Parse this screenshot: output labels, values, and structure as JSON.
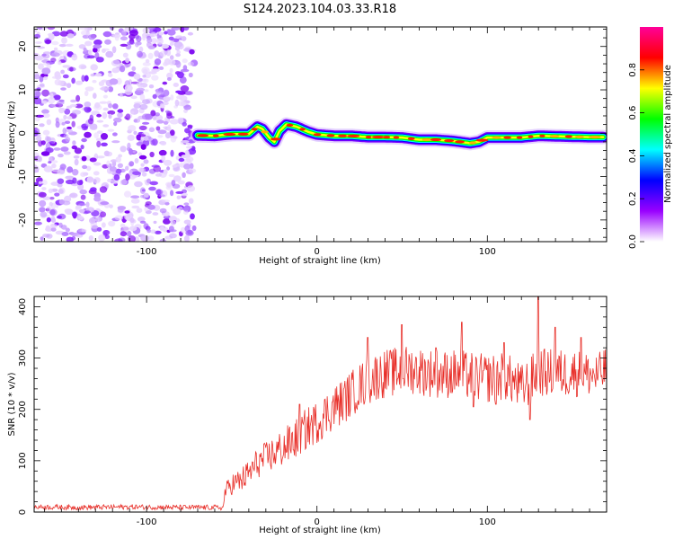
{
  "title": "S124.2023.104.03.33.R18",
  "chart_data": [
    {
      "type": "heatmap",
      "xlabel": "Height of straight line (km)",
      "ylabel": "Frequency (Hz)",
      "xlim": [
        -166,
        170
      ],
      "ylim": [
        -25,
        24.5
      ],
      "x_ticks": [
        -100,
        0,
        100
      ],
      "y_ticks": [
        -20,
        -10,
        0,
        10,
        20
      ],
      "colorbar": {
        "label": "Normalized spectral amplitude",
        "range": [
          0,
          1
        ],
        "ticks": [
          0.0,
          0.2,
          0.4,
          0.6,
          0.8
        ],
        "colors": [
          "#ffffff",
          "#9900ff",
          "#0000ff",
          "#00ffff",
          "#00ff00",
          "#ffff00",
          "#ff0000",
          "#ff0099"
        ]
      },
      "noise_region_end_x": -72,
      "ridge": {
        "x": [
          -70,
          -60,
          -50,
          -40,
          -35,
          -32,
          -28,
          -25,
          -22,
          -18,
          -12,
          -5,
          0,
          10,
          20,
          30,
          40,
          50,
          60,
          70,
          80,
          90,
          95,
          100,
          110,
          120,
          130,
          140,
          150,
          160,
          168
        ],
        "freq": [
          -0.5,
          -0.6,
          -0.2,
          -0.2,
          1.5,
          1.0,
          -1.0,
          -2.0,
          0.5,
          2.0,
          1.5,
          0.3,
          -0.3,
          -0.6,
          -0.6,
          -0.9,
          -0.9,
          -1.0,
          -1.5,
          -1.5,
          -1.8,
          -2.3,
          -2.0,
          -1.0,
          -1.0,
          -1.0,
          -0.6,
          -0.7,
          -0.8,
          -0.9,
          -0.9
        ]
      }
    },
    {
      "type": "line",
      "xlabel": "Height of straight line (km)",
      "ylabel": "SNR (10 * v/v)",
      "xlim": [
        -166,
        170
      ],
      "ylim": [
        0,
        420
      ],
      "x_ticks": [
        -100,
        0,
        100
      ],
      "y_ticks": [
        0,
        100,
        200,
        300,
        400
      ],
      "color": "#e8302a",
      "series": [
        {
          "x": [
            -166,
            -140,
            -110,
            -80,
            -60,
            -55,
            -54,
            -50,
            -45,
            -40,
            -35,
            -30,
            -25,
            -20,
            -15,
            -10,
            -5,
            0,
            5,
            10,
            15,
            20,
            25,
            30,
            35,
            40,
            45,
            50,
            55,
            60,
            65,
            70,
            75,
            80,
            85,
            90,
            95,
            100,
            105,
            110,
            115,
            120,
            125,
            130,
            135,
            140,
            145,
            150,
            155,
            160,
            165,
            170
          ],
          "y": [
            10,
            9,
            10,
            9,
            9,
            8,
            40,
            55,
            60,
            75,
            95,
            105,
            115,
            125,
            135,
            150,
            165,
            175,
            190,
            205,
            215,
            230,
            245,
            255,
            265,
            270,
            272,
            275,
            278,
            275,
            272,
            270,
            268,
            270,
            268,
            265,
            262,
            260,
            262,
            265,
            255,
            240,
            255,
            275,
            270,
            272,
            270,
            272,
            270,
            268,
            265,
            280
          ],
          "noise_amplitude": [
            5,
            5,
            5,
            5,
            5,
            5,
            15,
            22,
            25,
            28,
            30,
            32,
            35,
            38,
            40,
            40,
            42,
            42,
            44,
            45,
            45,
            46,
            46,
            48,
            48,
            48,
            48,
            50,
            48,
            48,
            48,
            48,
            48,
            48,
            48,
            48,
            48,
            48,
            48,
            48,
            48,
            48,
            48,
            48,
            48,
            48,
            48,
            48,
            46,
            45,
            45,
            45
          ],
          "peaks": [
            [
              -10,
              210
            ],
            [
              30,
              340
            ],
            [
              50,
              365
            ],
            [
              70,
              320
            ],
            [
              85,
              370
            ],
            [
              110,
              330
            ],
            [
              130,
              420
            ],
            [
              140,
              360
            ],
            [
              155,
              340
            ]
          ],
          "dips": [
            [
              125,
              180
            ],
            [
              105,
              210
            ],
            [
              92,
              205
            ]
          ]
        }
      ]
    }
  ]
}
